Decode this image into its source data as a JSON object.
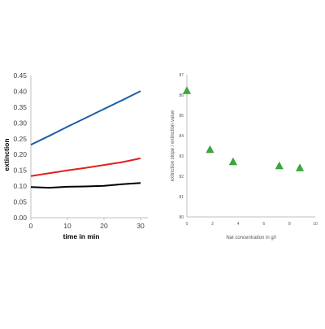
{
  "chart_data": [
    {
      "type": "line",
      "title": "",
      "xlabel": "time in min",
      "ylabel": "extinction",
      "xlim": [
        0,
        32
      ],
      "ylim": [
        0,
        0.45
      ],
      "x_ticks": [
        "0",
        "10",
        "20",
        "30"
      ],
      "y_ticks": [
        "0.00",
        "0.05",
        "0.10",
        "0.15",
        "0.20",
        "0.25",
        "0.30",
        "0.35",
        "0.40",
        "0.45"
      ],
      "grid": false,
      "legend": "none",
      "series": [
        {
          "color": "#1f5fa8",
          "x": [
            0,
            5,
            10,
            15,
            20,
            25,
            30
          ],
          "y": [
            0.231,
            0.259,
            0.288,
            0.316,
            0.344,
            0.372,
            0.401
          ]
        },
        {
          "color": "#e02020",
          "x": [
            0,
            5,
            10,
            15,
            20,
            25,
            30
          ],
          "y": [
            0.132,
            0.141,
            0.15,
            0.158,
            0.167,
            0.176,
            0.188
          ]
        },
        {
          "color": "#000000",
          "x": [
            0,
            5,
            10,
            15,
            20,
            25,
            30
          ],
          "y": [
            0.097,
            0.095,
            0.098,
            0.099,
            0.101,
            0.106,
            0.11
          ]
        }
      ]
    },
    {
      "type": "scatter",
      "title": "",
      "xlabel": "NaI concentration in g/l",
      "ylabel": "extinction slope / extinction value",
      "xlim": [
        0,
        10
      ],
      "ylim": [
        80,
        87
      ],
      "x_ticks": [
        "0",
        "2",
        "4",
        "6",
        "8",
        "10"
      ],
      "y_ticks": [
        "80",
        "81",
        "82",
        "83",
        "84",
        "85",
        "86",
        "87"
      ],
      "grid": false,
      "legend": "none",
      "marker": "triangle",
      "series": [
        {
          "color": "#3aaa3a",
          "x": [
            0,
            1.8,
            3.6,
            7.2,
            8.8
          ],
          "y": [
            86.2,
            83.3,
            82.7,
            82.5,
            82.4
          ]
        }
      ]
    }
  ]
}
